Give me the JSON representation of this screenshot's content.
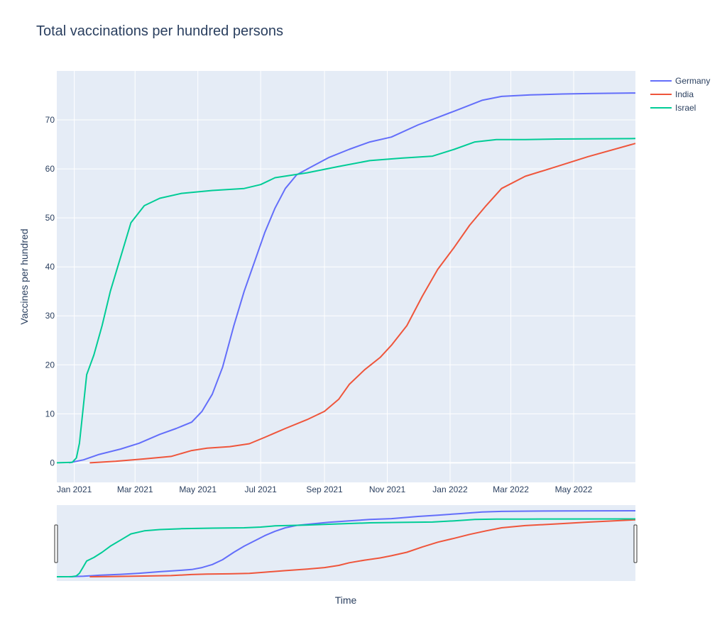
{
  "chart_data": {
    "type": "line",
    "title": "Total vaccinations per hundred persons",
    "xlabel": "Time",
    "ylabel": "Vaccines per hundred",
    "x_range": [
      "2020-12-15",
      "2022-06-30"
    ],
    "ylim": [
      -4,
      80
    ],
    "y_ticks": [
      0,
      10,
      20,
      30,
      40,
      50,
      60,
      70
    ],
    "x_ticks": [
      {
        "date": "2021-01-01",
        "label": "Jan 2021"
      },
      {
        "date": "2021-03-01",
        "label": "Mar 2021"
      },
      {
        "date": "2021-05-01",
        "label": "May 2021"
      },
      {
        "date": "2021-07-01",
        "label": "Jul 2021"
      },
      {
        "date": "2021-09-01",
        "label": "Sep 2021"
      },
      {
        "date": "2021-11-01",
        "label": "Nov 2021"
      },
      {
        "date": "2022-01-01",
        "label": "Jan 2022"
      },
      {
        "date": "2022-03-01",
        "label": "Mar 2022"
      },
      {
        "date": "2022-05-01",
        "label": "May 2022"
      }
    ],
    "grid": true,
    "legend_position": "top-right",
    "rangeslider": true,
    "series": [
      {
        "name": "Germany",
        "color": "#636efa",
        "points": [
          [
            "2020-12-27",
            0.0
          ],
          [
            "2021-01-10",
            0.6
          ],
          [
            "2021-01-25",
            1.7
          ],
          [
            "2021-02-15",
            2.8
          ],
          [
            "2021-03-05",
            4.0
          ],
          [
            "2021-03-25",
            5.8
          ],
          [
            "2021-04-10",
            7.0
          ],
          [
            "2021-04-25",
            8.3
          ],
          [
            "2021-05-05",
            10.5
          ],
          [
            "2021-05-15",
            14.0
          ],
          [
            "2021-05-25",
            19.5
          ],
          [
            "2021-06-05",
            28.0
          ],
          [
            "2021-06-15",
            35.0
          ],
          [
            "2021-06-25",
            41.0
          ],
          [
            "2021-07-05",
            47.0
          ],
          [
            "2021-07-15",
            52.0
          ],
          [
            "2021-07-25",
            56.0
          ],
          [
            "2021-08-05",
            58.8
          ],
          [
            "2021-08-20",
            60.5
          ],
          [
            "2021-09-05",
            62.3
          ],
          [
            "2021-09-25",
            64.0
          ],
          [
            "2021-10-15",
            65.5
          ],
          [
            "2021-11-05",
            66.5
          ],
          [
            "2021-12-01",
            69.0
          ],
          [
            "2021-12-20",
            70.5
          ],
          [
            "2022-01-10",
            72.2
          ],
          [
            "2022-02-01",
            74.0
          ],
          [
            "2022-02-20",
            74.8
          ],
          [
            "2022-03-20",
            75.1
          ],
          [
            "2022-04-20",
            75.3
          ],
          [
            "2022-05-20",
            75.4
          ],
          [
            "2022-06-30",
            75.5
          ]
        ]
      },
      {
        "name": "India",
        "color": "#ef553b",
        "points": [
          [
            "2021-01-16",
            0.0
          ],
          [
            "2021-02-10",
            0.3
          ],
          [
            "2021-03-10",
            0.8
          ],
          [
            "2021-04-05",
            1.3
          ],
          [
            "2021-04-25",
            2.5
          ],
          [
            "2021-05-10",
            3.0
          ],
          [
            "2021-06-01",
            3.3
          ],
          [
            "2021-06-20",
            3.9
          ],
          [
            "2021-07-05",
            5.2
          ],
          [
            "2021-07-25",
            7.0
          ],
          [
            "2021-08-15",
            8.8
          ],
          [
            "2021-09-01",
            10.5
          ],
          [
            "2021-09-15",
            13.0
          ],
          [
            "2021-09-25",
            16.0
          ],
          [
            "2021-10-10",
            19.0
          ],
          [
            "2021-10-25",
            21.5
          ],
          [
            "2021-11-05",
            24.0
          ],
          [
            "2021-11-20",
            28.0
          ],
          [
            "2021-12-05",
            34.0
          ],
          [
            "2021-12-20",
            39.5
          ],
          [
            "2022-01-05",
            44.0
          ],
          [
            "2022-01-20",
            48.5
          ],
          [
            "2022-02-05",
            52.5
          ],
          [
            "2022-02-20",
            56.0
          ],
          [
            "2022-03-15",
            58.5
          ],
          [
            "2022-04-15",
            60.5
          ],
          [
            "2022-05-15",
            62.5
          ],
          [
            "2022-06-30",
            65.2
          ]
        ]
      },
      {
        "name": "Israel",
        "color": "#00cc96",
        "points": [
          [
            "2020-12-15",
            0.0
          ],
          [
            "2020-12-30",
            0.1
          ],
          [
            "2021-01-03",
            1.0
          ],
          [
            "2021-01-06",
            4.0
          ],
          [
            "2021-01-09",
            10.0
          ],
          [
            "2021-01-13",
            18.0
          ],
          [
            "2021-01-20",
            22.0
          ],
          [
            "2021-01-28",
            28.0
          ],
          [
            "2021-02-05",
            35.0
          ],
          [
            "2021-02-15",
            42.0
          ],
          [
            "2021-02-25",
            49.0
          ],
          [
            "2021-03-10",
            52.5
          ],
          [
            "2021-03-25",
            54.0
          ],
          [
            "2021-04-15",
            55.0
          ],
          [
            "2021-05-15",
            55.6
          ],
          [
            "2021-06-15",
            56.0
          ],
          [
            "2021-07-01",
            56.8
          ],
          [
            "2021-07-15",
            58.2
          ],
          [
            "2021-08-15",
            59.2
          ],
          [
            "2021-09-15",
            60.5
          ],
          [
            "2021-10-15",
            61.7
          ],
          [
            "2021-11-15",
            62.2
          ],
          [
            "2021-12-15",
            62.6
          ],
          [
            "2022-01-05",
            64.0
          ],
          [
            "2022-01-25",
            65.5
          ],
          [
            "2022-02-15",
            66.0
          ],
          [
            "2022-03-15",
            66.0
          ],
          [
            "2022-04-15",
            66.1
          ],
          [
            "2022-06-30",
            66.2
          ]
        ]
      }
    ]
  },
  "colors": {
    "plot_bg": "#e5ecf6",
    "grid": "#ffffff",
    "text": "#2a3f5f"
  }
}
